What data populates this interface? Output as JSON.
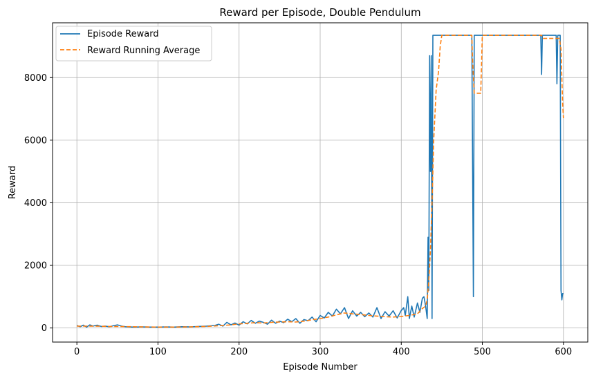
{
  "chart_data": {
    "type": "line",
    "title": "Reward per Episode, Double Pendulum",
    "xlabel": "Episode Number",
    "ylabel": "Reward",
    "xlim": [
      -30,
      630
    ],
    "ylim": [
      -450,
      9750
    ],
    "xticks": [
      0,
      100,
      200,
      300,
      400,
      500,
      600
    ],
    "yticks": [
      0,
      2000,
      4000,
      6000,
      8000
    ],
    "grid": true,
    "legend_position": "upper left",
    "series": [
      {
        "name": "Episode Reward",
        "color": "#1f77b4",
        "dash": "solid",
        "x": [
          0,
          4,
          8,
          12,
          16,
          20,
          25,
          30,
          35,
          40,
          45,
          50,
          55,
          60,
          70,
          80,
          90,
          100,
          110,
          120,
          130,
          140,
          150,
          160,
          170,
          175,
          180,
          185,
          190,
          195,
          200,
          205,
          210,
          215,
          220,
          225,
          230,
          235,
          240,
          245,
          250,
          255,
          260,
          265,
          270,
          275,
          280,
          285,
          290,
          295,
          300,
          305,
          310,
          315,
          320,
          325,
          330,
          335,
          340,
          345,
          350,
          355,
          360,
          365,
          370,
          375,
          380,
          385,
          390,
          395,
          400,
          403,
          405,
          408,
          410,
          413,
          416,
          420,
          423,
          426,
          428,
          430,
          432,
          433,
          434,
          435,
          436,
          437,
          438,
          439,
          440,
          450,
          460,
          470,
          480,
          487,
          488,
          489,
          490,
          491,
          500,
          510,
          520,
          530,
          540,
          550,
          560,
          570,
          572,
          573,
          574,
          575,
          580,
          585,
          590,
          591,
          592,
          593,
          594,
          595,
          596,
          597,
          598,
          599,
          600
        ],
        "values": [
          80,
          40,
          90,
          30,
          100,
          60,
          90,
          50,
          60,
          40,
          70,
          100,
          60,
          40,
          30,
          35,
          30,
          30,
          35,
          30,
          40,
          35,
          50,
          60,
          80,
          120,
          60,
          180,
          100,
          160,
          90,
          200,
          130,
          240,
          150,
          220,
          180,
          120,
          250,
          150,
          220,
          170,
          280,
          200,
          300,
          150,
          270,
          230,
          350,
          200,
          400,
          320,
          500,
          380,
          600,
          450,
          650,
          300,
          550,
          380,
          500,
          360,
          480,
          350,
          650,
          300,
          520,
          380,
          550,
          320,
          560,
          650,
          400,
          1000,
          300,
          700,
          350,
          800,
          500,
          950,
          1000,
          700,
          300,
          2900,
          1200,
          8700,
          5000,
          8700,
          300,
          9350,
          9350,
          9350,
          9350,
          9350,
          9350,
          9350,
          5000,
          1000,
          9350,
          9350,
          9350,
          9350,
          9350,
          9350,
          9350,
          9350,
          9350,
          9350,
          9350,
          8100,
          9350,
          9350,
          9350,
          9350,
          9350,
          9350,
          7800,
          9350,
          9350,
          9350,
          9350,
          1200,
          900,
          1100,
          1100
        ]
      },
      {
        "name": "Reward Running Average",
        "color": "#ff7f0e",
        "dash": "dashed",
        "x": [
          0,
          20,
          40,
          60,
          80,
          100,
          120,
          140,
          160,
          180,
          190,
          200,
          210,
          220,
          230,
          240,
          250,
          260,
          270,
          280,
          290,
          300,
          310,
          320,
          330,
          340,
          350,
          360,
          370,
          380,
          390,
          400,
          410,
          420,
          425,
          430,
          432,
          434,
          436,
          438,
          440,
          443,
          446,
          448,
          450,
          460,
          480,
          486,
          487,
          488,
          490,
          492,
          495,
          498,
          500,
          510,
          530,
          550,
          560,
          570,
          573,
          575,
          580,
          585,
          590,
          595,
          597,
          598,
          599,
          600
        ],
        "values": [
          60,
          60,
          50,
          45,
          35,
          30,
          30,
          35,
          50,
          80,
          100,
          130,
          150,
          170,
          160,
          180,
          190,
          200,
          190,
          220,
          260,
          300,
          350,
          420,
          480,
          450,
          430,
          400,
          380,
          360,
          350,
          370,
          400,
          450,
          600,
          700,
          900,
          1500,
          2500,
          4000,
          6000,
          7600,
          8200,
          9000,
          9350,
          9350,
          9350,
          9350,
          9350,
          8500,
          7500,
          7500,
          7500,
          7500,
          9350,
          9350,
          9350,
          9350,
          9350,
          9350,
          9350,
          9250,
          9250,
          9250,
          9250,
          9250,
          8900,
          8000,
          7200,
          6700
        ]
      }
    ]
  }
}
